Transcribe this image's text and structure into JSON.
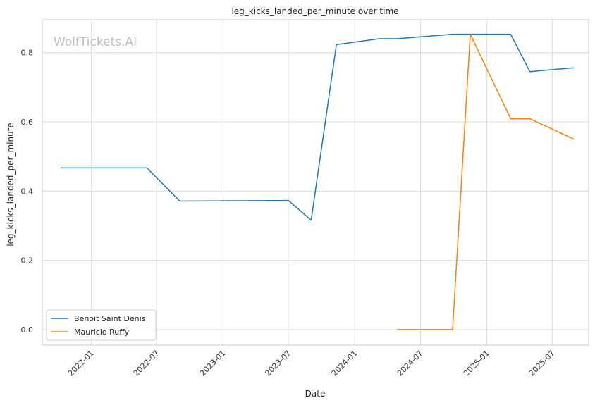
{
  "chart_data": {
    "type": "line",
    "title": "leg_kicks_landed_per_minute over time",
    "xlabel": "Date",
    "ylabel": "leg_kicks_landed_per_minute",
    "watermark": "WolfTickets.AI",
    "x_range": [
      "2021-08-18",
      "2025-10-10"
    ],
    "ylim": [
      -0.045,
      0.895
    ],
    "grid": true,
    "legend_position": "lower-left",
    "x_ticks": [
      "2022-01",
      "2022-07",
      "2023-01",
      "2023-07",
      "2024-01",
      "2024-07",
      "2025-01",
      "2025-07"
    ],
    "y_ticks": [
      0.0,
      0.2,
      0.4,
      0.6,
      0.8
    ],
    "series": [
      {
        "name": "Benoit Saint Denis",
        "color": "#1f77b4",
        "points": [
          {
            "x": "2021-10-09",
            "y": 0.467
          },
          {
            "x": "2022-06-04",
            "y": 0.467
          },
          {
            "x": "2022-09-03",
            "y": 0.371
          },
          {
            "x": "2023-07-01",
            "y": 0.373
          },
          {
            "x": "2023-09-02",
            "y": 0.316
          },
          {
            "x": "2023-11-11",
            "y": 0.823
          },
          {
            "x": "2024-03-09",
            "y": 0.84
          },
          {
            "x": "2024-04-27",
            "y": 0.84
          },
          {
            "x": "2024-09-28",
            "y": 0.853
          },
          {
            "x": "2025-03-08",
            "y": 0.853
          },
          {
            "x": "2025-04-30",
            "y": 0.745
          },
          {
            "x": "2025-08-30",
            "y": 0.756
          }
        ]
      },
      {
        "name": "Mauricio Ruffy",
        "color": "#ff7f0e",
        "points": [
          {
            "x": "2024-04-27",
            "y": 0.0
          },
          {
            "x": "2024-09-28",
            "y": 0.0
          },
          {
            "x": "2024-11-16",
            "y": 0.853
          },
          {
            "x": "2025-03-08",
            "y": 0.609
          },
          {
            "x": "2025-04-30",
            "y": 0.609
          },
          {
            "x": "2025-08-30",
            "y": 0.55
          }
        ]
      }
    ]
  }
}
